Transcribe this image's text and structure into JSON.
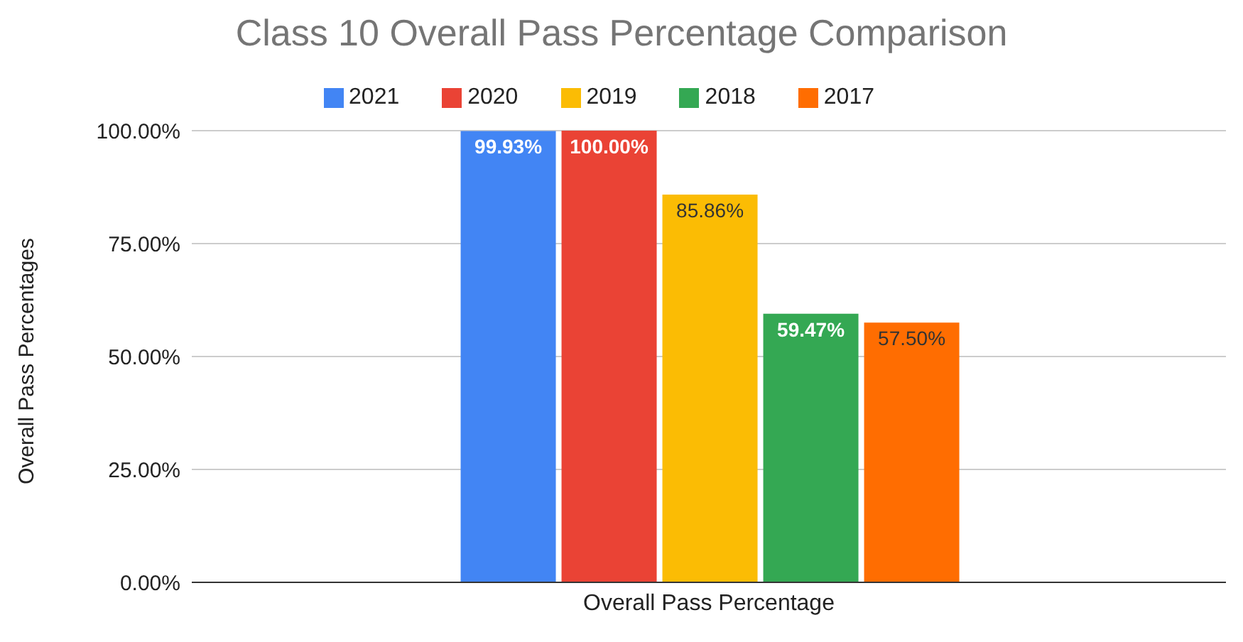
{
  "chart_data": {
    "type": "bar",
    "title": "Class 10 Overall Pass Percentage Comparison",
    "ylabel": "Overall Pass Percentages",
    "categories": [
      "Overall Pass Percentage"
    ],
    "series": [
      {
        "name": "2021",
        "color": "#4285f4",
        "values": [
          99.93
        ],
        "value_labels": [
          "99.93%"
        ]
      },
      {
        "name": "2020",
        "color": "#ea4335",
        "values": [
          100
        ],
        "value_labels": [
          "100.00%"
        ]
      },
      {
        "name": "2019",
        "color": "#fbbc04",
        "values": [
          85.86
        ],
        "value_labels": [
          "85.86%"
        ]
      },
      {
        "name": "2018",
        "color": "#34a853",
        "values": [
          59.47
        ],
        "value_labels": [
          "59.47%"
        ]
      },
      {
        "name": "2017",
        "color": "#ff6d01",
        "values": [
          57.5
        ],
        "value_labels": [
          "57.50%"
        ]
      }
    ],
    "ylim": [
      0,
      100
    ],
    "yticks": [
      {
        "value": 0,
        "label": "0.00%"
      },
      {
        "value": 25,
        "label": "25.00%"
      },
      {
        "value": 50,
        "label": "50.00%"
      },
      {
        "value": 75,
        "label": "75.00%"
      },
      {
        "value": 100,
        "label": "100.00%"
      }
    ],
    "grid": "y",
    "legend": "top"
  }
}
